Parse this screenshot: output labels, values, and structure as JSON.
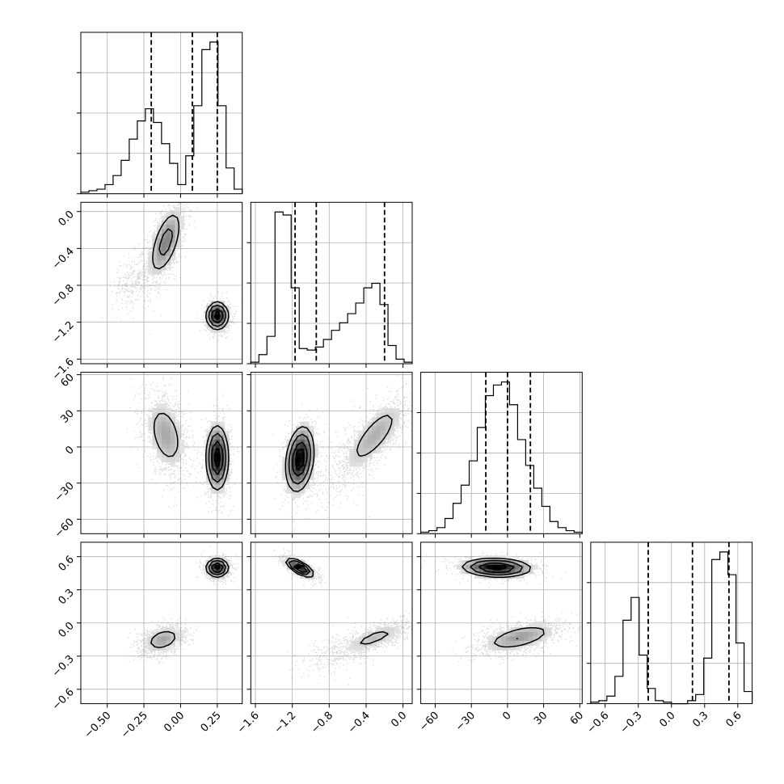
{
  "chart_data": {
    "type": "corner",
    "grid": true,
    "parameters": 4,
    "ranges": [
      [
        -0.68,
        0.42
      ],
      [
        -1.65,
        0.1
      ],
      [
        -72,
        62
      ],
      [
        -0.73,
        0.73
      ]
    ],
    "xticks": [
      {
        "values": [
          -0.5,
          -0.25,
          0.0,
          0.25
        ],
        "labels": [
          "−0.50",
          "−0.25",
          "0.00",
          "0.25"
        ]
      },
      {
        "values": [
          -1.6,
          -1.2,
          -0.8,
          -0.4,
          0.0
        ],
        "labels": [
          "−1.6",
          "−1.2",
          "−0.8",
          "−0.4",
          "0.0"
        ]
      },
      {
        "values": [
          -60,
          -30,
          0,
          30,
          60
        ],
        "labels": [
          "−60",
          "−30",
          "0",
          "30",
          "60"
        ]
      },
      {
        "values": [
          -0.6,
          -0.3,
          0.0,
          0.3,
          0.6
        ],
        "labels": [
          "−0.6",
          "−0.3",
          "0.0",
          "0.3",
          "0.6"
        ]
      }
    ],
    "quantiles": [
      [
        -0.2,
        0.08,
        0.25
      ],
      [
        -1.17,
        -0.94,
        -0.2
      ],
      [
        -18,
        0,
        19
      ],
      [
        -0.21,
        0.19,
        0.52
      ]
    ],
    "histograms": [
      {
        "counts": [
          1,
          2,
          3,
          6,
          12,
          22,
          36,
          48,
          56,
          47,
          33,
          20,
          6,
          25,
          58,
          95,
          100,
          58,
          17,
          3
        ]
      },
      {
        "counts": [
          1,
          6,
          18,
          100,
          98,
          50,
          10,
          9,
          11,
          16,
          22,
          27,
          33,
          40,
          50,
          53,
          39,
          12,
          3,
          1
        ]
      },
      {
        "counts": [
          1,
          2,
          4,
          10,
          20,
          32,
          48,
          70,
          91,
          98,
          100,
          85,
          62,
          45,
          30,
          18,
          8,
          4,
          2,
          1
        ]
      },
      {
        "counts": [
          1,
          2,
          5,
          18,
          55,
          70,
          32,
          10,
          2,
          1,
          0,
          0,
          2,
          6,
          30,
          95,
          100,
          85,
          40,
          8
        ]
      }
    ],
    "pairs": [
      {
        "i": 1,
        "j": 0,
        "blobs": [
          {
            "mx": -0.1,
            "my": -0.33,
            "sx": 0.07,
            "sy": 0.23,
            "rho": 0.58,
            "w": 0.55,
            "peak": 0.55
          },
          {
            "mx": -0.33,
            "my": -0.75,
            "sx": 0.07,
            "sy": 0.15,
            "rho": 0.3,
            "w": 0.12,
            "peak": 0.1
          },
          {
            "mx": 0.25,
            "my": -1.13,
            "sx": 0.045,
            "sy": 0.09,
            "rho": 0.0,
            "w": 0.33,
            "peak": 1.0
          }
        ]
      },
      {
        "i": 2,
        "j": 0,
        "blobs": [
          {
            "mx": -0.1,
            "my": 10,
            "sx": 0.08,
            "sy": 18,
            "rho": -0.35,
            "w": 0.5,
            "peak": 0.35
          },
          {
            "mx": 0.25,
            "my": -9,
            "sx": 0.045,
            "sy": 16,
            "rho": 0.0,
            "w": 0.5,
            "peak": 0.85
          }
        ]
      },
      {
        "i": 2,
        "j": 1,
        "blobs": [
          {
            "mx": -1.12,
            "my": -10,
            "sx": 0.09,
            "sy": 16,
            "rho": 0.25,
            "w": 0.42,
            "peak": 0.95
          },
          {
            "mx": -0.3,
            "my": 10,
            "sx": 0.2,
            "sy": 18,
            "rho": 0.75,
            "w": 0.48,
            "peak": 0.35
          },
          {
            "mx": -0.75,
            "my": -20,
            "sx": 0.2,
            "sy": 18,
            "rho": 0.4,
            "w": 0.1,
            "peak": 0.05
          }
        ]
      },
      {
        "i": 3,
        "j": 0,
        "blobs": [
          {
            "mx": 0.25,
            "my": 0.5,
            "sx": 0.045,
            "sy": 0.05,
            "rho": 0.0,
            "w": 0.5,
            "peak": 0.95
          },
          {
            "mx": -0.12,
            "my": -0.15,
            "sx": 0.08,
            "sy": 0.07,
            "rho": 0.35,
            "w": 0.5,
            "peak": 0.4
          }
        ]
      },
      {
        "i": 3,
        "j": 1,
        "blobs": [
          {
            "mx": -1.12,
            "my": 0.5,
            "sx": 0.09,
            "sy": 0.05,
            "rho": -0.7,
            "w": 0.45,
            "peak": 0.95
          },
          {
            "mx": -0.3,
            "my": -0.13,
            "sx": 0.2,
            "sy": 0.08,
            "rho": 0.75,
            "w": 0.45,
            "peak": 0.3
          },
          {
            "mx": -0.75,
            "my": -0.28,
            "sx": 0.2,
            "sy": 0.1,
            "rho": 0.3,
            "w": 0.1,
            "peak": 0.05
          }
        ]
      },
      {
        "i": 3,
        "j": 2,
        "blobs": [
          {
            "mx": -9,
            "my": 0.5,
            "sx": 17,
            "sy": 0.05,
            "rho": -0.1,
            "w": 0.5,
            "peak": 1.0
          },
          {
            "mx": 10,
            "my": -0.13,
            "sx": 19,
            "sy": 0.08,
            "rho": 0.55,
            "w": 0.5,
            "peak": 0.45
          }
        ]
      }
    ]
  }
}
